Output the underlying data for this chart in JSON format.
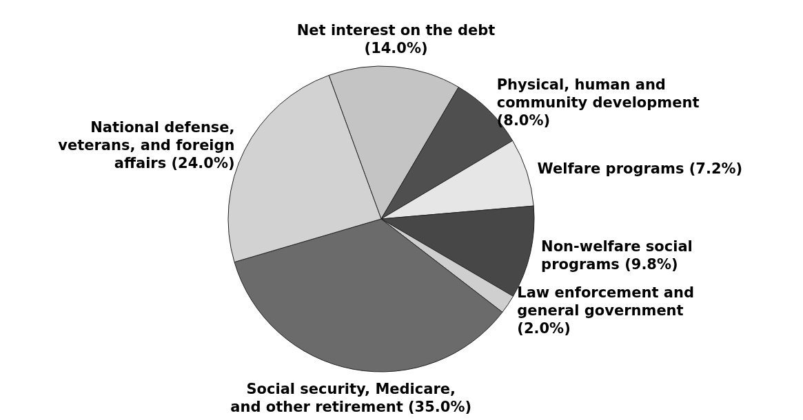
{
  "chart_data": {
    "type": "pie",
    "categories": [
      "Net interest on the debt (14.0%)",
      "Physical, human and community development (8.0%)",
      "Welfare programs (7.2%)",
      "Non-welfare social programs (9.8%)",
      "Law enforcement and general government (2.0%)",
      "Social security, Medicare, and other retirement (35.0%)",
      "National defense, veterans, and foreign affairs (24.0%)"
    ],
    "values": [
      14.0,
      8.0,
      7.2,
      9.8,
      2.0,
      35.0,
      24.0
    ],
    "colors": [
      "#c4c4c4",
      "#4f4f4f",
      "#e6e6e6",
      "#474747",
      "#cfcfcf",
      "#6b6b6b",
      "#d2d2d2"
    ]
  }
}
